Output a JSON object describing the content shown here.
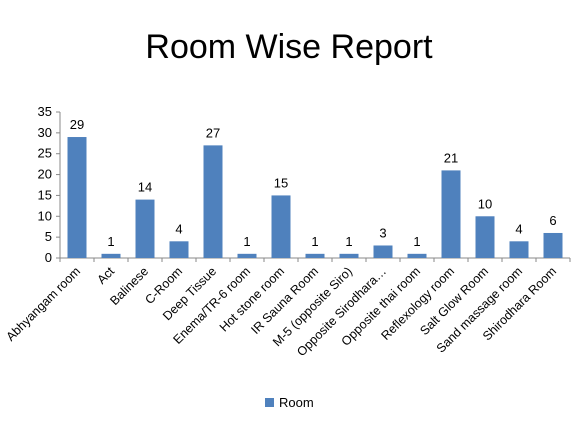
{
  "chart_data": {
    "type": "bar",
    "title": "Room Wise Report",
    "categories": [
      "Abhyangam room",
      "Act",
      "Balinese",
      "C-Room",
      "Deep Tissue",
      "Enema/TR-6 room",
      "Hot stone  room",
      "IR Sauna Room",
      "M-5 (opposite Siro)",
      "Opposite Sirodhara…",
      "Opposite thai room",
      "Reflexology room",
      "Salt Glow Room",
      "Sand massage room",
      "Shirodhara Room"
    ],
    "series": [
      {
        "name": "Room",
        "values": [
          29,
          1,
          14,
          4,
          27,
          1,
          15,
          1,
          1,
          3,
          1,
          21,
          10,
          4,
          6
        ]
      }
    ],
    "ylim": [
      0,
      35
    ],
    "yticks": [
      0,
      5,
      10,
      15,
      20,
      25,
      30,
      35
    ],
    "grid": false,
    "legend_position": "bottom",
    "data_labels": true,
    "bar_color": "#4f81bd"
  }
}
